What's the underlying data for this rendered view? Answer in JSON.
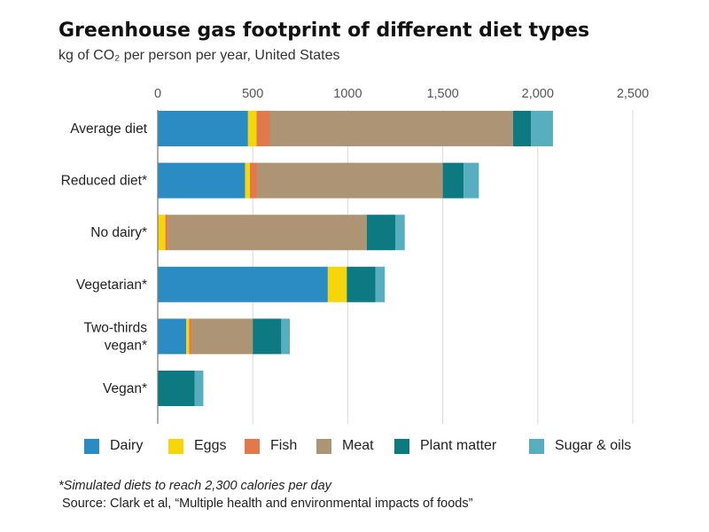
{
  "header": {
    "title": "Greenhouse gas footprint of different diet types",
    "subtitle": "kg of CO₂ per person per year, United States"
  },
  "chart_data": {
    "type": "bar",
    "orientation": "horizontal",
    "stacked": true,
    "title": "Greenhouse gas footprint of different diet types",
    "subtitle": "kg of CO₂ per person per year, United States",
    "xlim": [
      0,
      2500
    ],
    "x_ticks": [
      {
        "value": 0,
        "label": "0"
      },
      {
        "value": 500,
        "label": "500"
      },
      {
        "value": 1000,
        "label": "1000"
      },
      {
        "value": 1500,
        "label": "1,500"
      },
      {
        "value": 2000,
        "label": "2,000"
      },
      {
        "value": 2500,
        "label": "2,500"
      }
    ],
    "grid": true,
    "legend_position": "bottom",
    "categories": [
      [
        "Average diet"
      ],
      [
        "Reduced diet*"
      ],
      [
        "No dairy*"
      ],
      [
        "Vegetarian*"
      ],
      [
        "Two-thirds",
        "vegan*"
      ],
      [
        "Vegan*"
      ]
    ],
    "series": [
      {
        "name": "Dairy",
        "color": "#2b8cc4",
        "values": [
          475,
          460,
          0,
          895,
          150,
          0
        ]
      },
      {
        "name": "Eggs",
        "color": "#f4d60a",
        "values": [
          45,
          25,
          40,
          100,
          15,
          0
        ]
      },
      {
        "name": "Fish",
        "color": "#e07a4c",
        "values": [
          70,
          40,
          15,
          0,
          15,
          0
        ]
      },
      {
        "name": "Meat",
        "color": "#ad9475",
        "values": [
          1280,
          975,
          1045,
          0,
          320,
          0
        ]
      },
      {
        "name": "Plant matter",
        "color": "#0c7a80",
        "values": [
          95,
          110,
          150,
          150,
          150,
          195
        ]
      },
      {
        "name": "Sugar & oils",
        "color": "#56aebf",
        "values": [
          115,
          80,
          50,
          50,
          45,
          45
        ]
      }
    ]
  },
  "footer": {
    "footnote": "*Simulated diets to reach 2,300 calories per day",
    "source": "Source: Clark et al, “Multiple health and environmental impacts of foods”"
  }
}
